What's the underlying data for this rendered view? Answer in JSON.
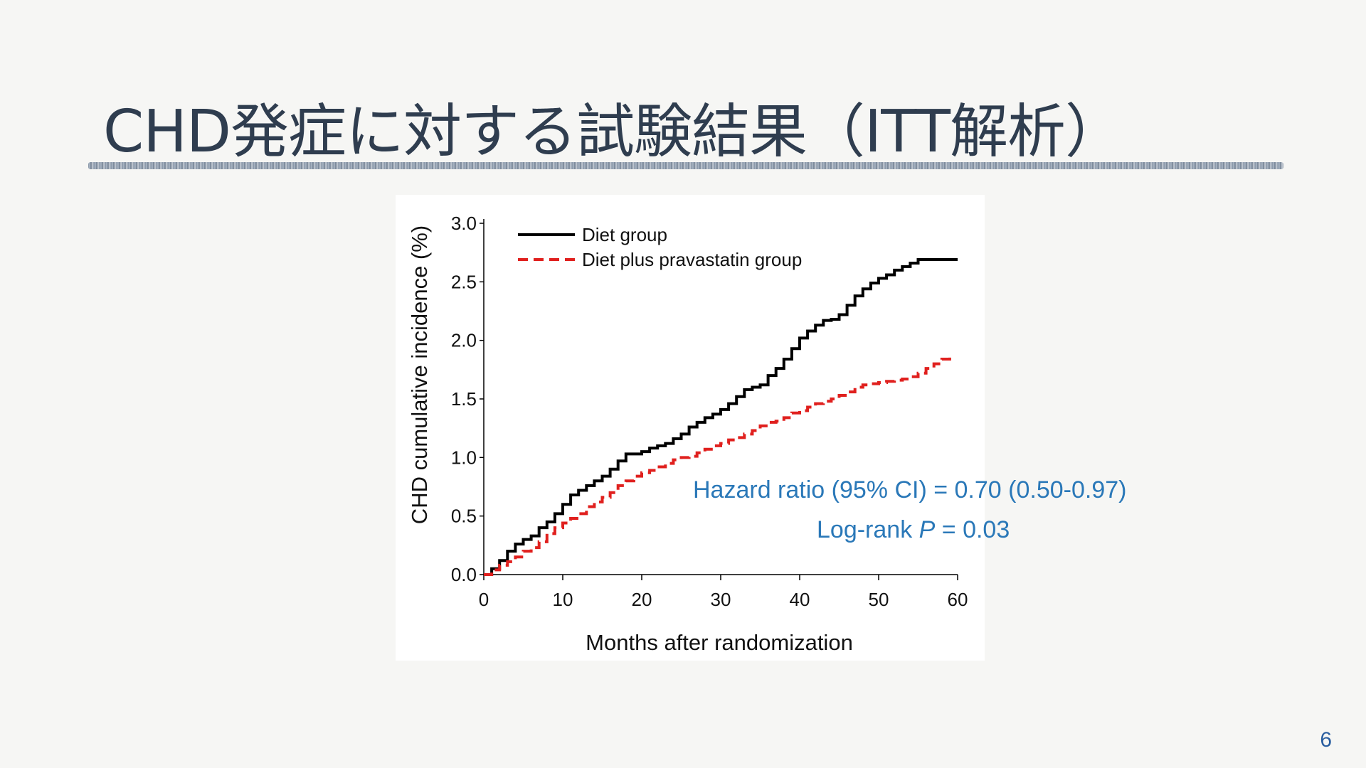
{
  "slide": {
    "title": "CHD発症に対する試験結果（ITT解析）",
    "page_number": "6"
  },
  "annotations": {
    "hazard_ratio": "Hazard ratio (95% CI) = 0.70 (0.50-0.97)",
    "logrank_prefix": "Log-rank ",
    "logrank_p": "P",
    "logrank_suffix": " = 0.03"
  },
  "chart_data": {
    "type": "line",
    "xlabel": "Months after randomization",
    "ylabel": "CHD cumulative incidence (%)",
    "xlim": [
      0,
      60
    ],
    "ylim": [
      0,
      3.0
    ],
    "xticks": [
      0,
      10,
      20,
      30,
      40,
      50,
      60
    ],
    "yticks": [
      0.0,
      0.5,
      1.0,
      1.5,
      2.0,
      2.5,
      3.0
    ],
    "ytick_labels": [
      "0.0",
      "0.5",
      "1.0",
      "1.5",
      "2.0",
      "2.5",
      "3.0"
    ],
    "grid": false,
    "legend_position": "top-left",
    "series": [
      {
        "name": "Diet group",
        "color": "#000000",
        "style": "solid",
        "points": [
          [
            0,
            0
          ],
          [
            1,
            0.05
          ],
          [
            2,
            0.12
          ],
          [
            3,
            0.2
          ],
          [
            4,
            0.26
          ],
          [
            5,
            0.3
          ],
          [
            6,
            0.33
          ],
          [
            7,
            0.4
          ],
          [
            8,
            0.45
          ],
          [
            9,
            0.52
          ],
          [
            10,
            0.6
          ],
          [
            11,
            0.68
          ],
          [
            12,
            0.72
          ],
          [
            13,
            0.76
          ],
          [
            14,
            0.8
          ],
          [
            15,
            0.84
          ],
          [
            16,
            0.9
          ],
          [
            17,
            0.97
          ],
          [
            18,
            1.03
          ],
          [
            19,
            1.03
          ],
          [
            20,
            1.05
          ],
          [
            21,
            1.08
          ],
          [
            22,
            1.1
          ],
          [
            23,
            1.12
          ],
          [
            24,
            1.16
          ],
          [
            25,
            1.2
          ],
          [
            26,
            1.26
          ],
          [
            27,
            1.3
          ],
          [
            28,
            1.34
          ],
          [
            29,
            1.37
          ],
          [
            30,
            1.41
          ],
          [
            31,
            1.46
          ],
          [
            32,
            1.52
          ],
          [
            33,
            1.58
          ],
          [
            34,
            1.6
          ],
          [
            35,
            1.62
          ],
          [
            36,
            1.7
          ],
          [
            37,
            1.76
          ],
          [
            38,
            1.84
          ],
          [
            39,
            1.93
          ],
          [
            40,
            2.02
          ],
          [
            41,
            2.08
          ],
          [
            42,
            2.13
          ],
          [
            43,
            2.17
          ],
          [
            44,
            2.18
          ],
          [
            45,
            2.22
          ],
          [
            46,
            2.3
          ],
          [
            47,
            2.38
          ],
          [
            48,
            2.44
          ],
          [
            49,
            2.49
          ],
          [
            50,
            2.53
          ],
          [
            51,
            2.56
          ],
          [
            52,
            2.6
          ],
          [
            53,
            2.63
          ],
          [
            54,
            2.66
          ],
          [
            55,
            2.69
          ],
          [
            56,
            2.69
          ],
          [
            57,
            2.69
          ],
          [
            58,
            2.69
          ],
          [
            59,
            2.69
          ],
          [
            60,
            2.69
          ]
        ]
      },
      {
        "name": "Diet plus pravastatin group",
        "color": "#e0201e",
        "style": "dashed",
        "points": [
          [
            0,
            0
          ],
          [
            1,
            0.04
          ],
          [
            2,
            0.08
          ],
          [
            3,
            0.11
          ],
          [
            4,
            0.15
          ],
          [
            5,
            0.2
          ],
          [
            6,
            0.23
          ],
          [
            7,
            0.28
          ],
          [
            8,
            0.35
          ],
          [
            9,
            0.4
          ],
          [
            10,
            0.44
          ],
          [
            11,
            0.48
          ],
          [
            12,
            0.52
          ],
          [
            13,
            0.58
          ],
          [
            14,
            0.62
          ],
          [
            15,
            0.66
          ],
          [
            16,
            0.7
          ],
          [
            17,
            0.76
          ],
          [
            18,
            0.8
          ],
          [
            19,
            0.84
          ],
          [
            20,
            0.87
          ],
          [
            21,
            0.89
          ],
          [
            22,
            0.92
          ],
          [
            23,
            0.95
          ],
          [
            24,
            0.98
          ],
          [
            25,
            1.0
          ],
          [
            26,
            1.01
          ],
          [
            27,
            1.04
          ],
          [
            28,
            1.07
          ],
          [
            29,
            1.1
          ],
          [
            30,
            1.12
          ],
          [
            31,
            1.15
          ],
          [
            32,
            1.17
          ],
          [
            33,
            1.2
          ],
          [
            34,
            1.23
          ],
          [
            35,
            1.27
          ],
          [
            36,
            1.3
          ],
          [
            37,
            1.31
          ],
          [
            38,
            1.34
          ],
          [
            39,
            1.38
          ],
          [
            40,
            1.4
          ],
          [
            41,
            1.43
          ],
          [
            42,
            1.46
          ],
          [
            43,
            1.48
          ],
          [
            44,
            1.5
          ],
          [
            45,
            1.53
          ],
          [
            46,
            1.56
          ],
          [
            47,
            1.6
          ],
          [
            48,
            1.62
          ],
          [
            49,
            1.63
          ],
          [
            50,
            1.64
          ],
          [
            51,
            1.65
          ],
          [
            52,
            1.66
          ],
          [
            53,
            1.67
          ],
          [
            54,
            1.69
          ],
          [
            55,
            1.72
          ],
          [
            56,
            1.76
          ],
          [
            57,
            1.8
          ],
          [
            58,
            1.84
          ],
          [
            59,
            1.88
          ]
        ]
      }
    ]
  }
}
